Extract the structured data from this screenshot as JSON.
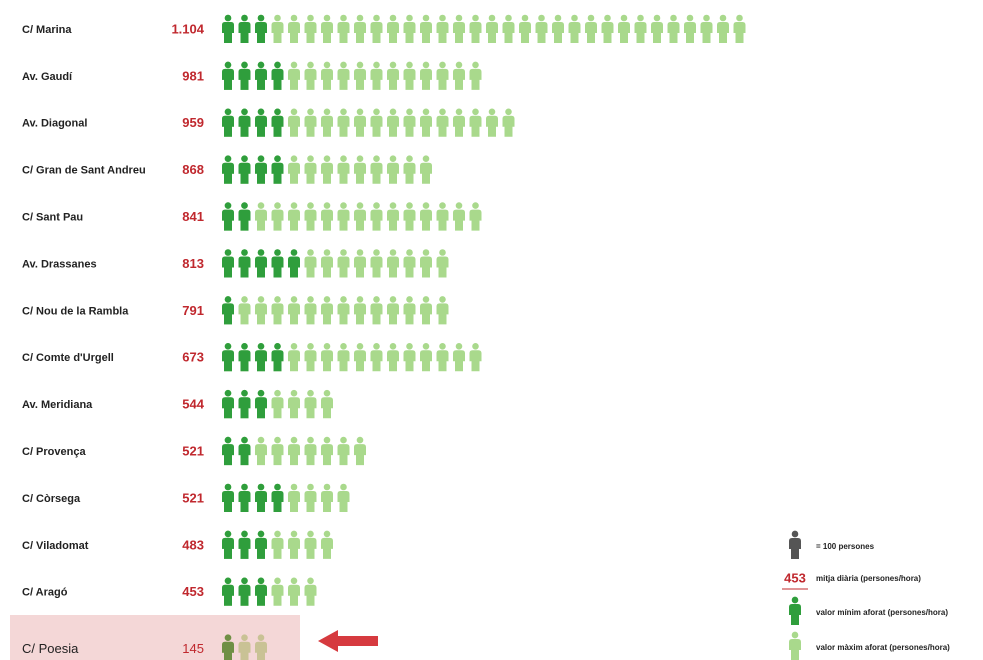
{
  "chart_data": {
    "type": "pictogram",
    "categories": [
      "C/ Marina",
      "Av. Gaudí",
      "Av. Diagonal",
      "C/ Gran de Sant Andreu",
      "C/ Sant Pau",
      "Av. Drassanes",
      "C/ Nou de la Rambla",
      "C/ Comte d'Urgell",
      "Av. Meridiana",
      "C/ Provença",
      "C/ Còrsega",
      "C/ Viladomat",
      "C/ Aragó",
      "C/ Poesia"
    ],
    "mean": {
      "name": "mitja diària (persones/hora)",
      "color": "#c0282e",
      "values": [
        1104,
        981,
        959,
        868,
        841,
        813,
        791,
        673,
        544,
        521,
        521,
        483,
        453,
        145
      ],
      "value_labels": [
        "1.104",
        "981",
        "959",
        "868",
        "841",
        "813",
        "791",
        "673",
        "544",
        "521",
        "521",
        "483",
        "453",
        "145"
      ]
    },
    "series": [
      {
        "name": "valor mínim aforat (persones/hora)",
        "color": "#2f9e3c",
        "values": [
          300,
          400,
          400,
          400,
          200,
          500,
          100,
          400,
          300,
          200,
          400,
          300,
          300,
          100
        ]
      },
      {
        "name": "valor màxim aforat (persones/hora)",
        "color": "#a9d98c",
        "values": [
          3200,
          1600,
          1800,
          1300,
          1600,
          1400,
          1400,
          1600,
          700,
          900,
          800,
          700,
          600,
          300
        ]
      }
    ],
    "icon_legend": {
      "value": 100,
      "label": "= 100 persones"
    },
    "legend_sample": {
      "value": 453,
      "label": "453"
    },
    "highlight_index": 13
  }
}
